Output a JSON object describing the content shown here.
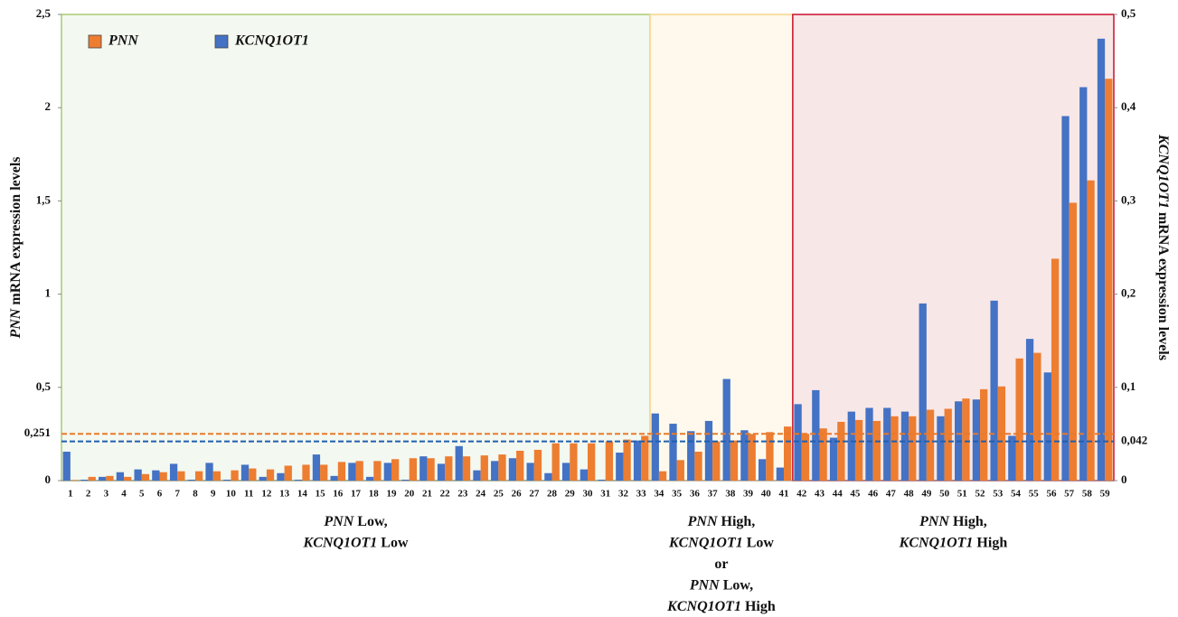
{
  "chart_data": {
    "type": "bar",
    "categories": [
      "1",
      "2",
      "3",
      "4",
      "5",
      "6",
      "7",
      "8",
      "9",
      "10",
      "11",
      "12",
      "13",
      "14",
      "15",
      "16",
      "17",
      "18",
      "19",
      "20",
      "21",
      "22",
      "23",
      "24",
      "25",
      "26",
      "27",
      "28",
      "29",
      "30",
      "31",
      "32",
      "33",
      "34",
      "35",
      "36",
      "37",
      "38",
      "39",
      "40",
      "41",
      "42",
      "43",
      "44",
      "45",
      "46",
      "47",
      "48",
      "49",
      "50",
      "51",
      "52",
      "53",
      "54",
      "55",
      "56",
      "57",
      "58",
      "59"
    ],
    "series": [
      {
        "name": "PNN",
        "color": "#ED7D31",
        "axis": "y",
        "values": [
          0.003,
          0.02,
          0.025,
          0.02,
          0.035,
          0.045,
          0.05,
          0.05,
          0.05,
          0.055,
          0.065,
          0.06,
          0.08,
          0.085,
          0.085,
          0.1,
          0.105,
          0.105,
          0.115,
          0.12,
          0.12,
          0.13,
          0.13,
          0.135,
          0.14,
          0.16,
          0.165,
          0.2,
          0.2,
          0.2,
          0.21,
          0.22,
          0.24,
          0.05,
          0.11,
          0.155,
          0.21,
          0.215,
          0.25,
          0.26,
          0.29,
          0.25,
          0.28,
          0.315,
          0.325,
          0.32,
          0.345,
          0.345,
          0.38,
          0.385,
          0.44,
          0.49,
          0.505,
          0.655,
          0.685,
          1.19,
          1.49,
          1.61,
          2.155
        ]
      },
      {
        "name": "KCNQ1OT1",
        "color": "#4472C4",
        "axis": "y2",
        "values": [
          0.031,
          0.001,
          0.004,
          0.009,
          0.012,
          0.011,
          0.018,
          0.001,
          0.019,
          0.001,
          0.017,
          0.004,
          0.008,
          0.001,
          0.028,
          0.005,
          0.019,
          0.004,
          0.019,
          0.001,
          0.026,
          0.018,
          0.037,
          0.011,
          0.021,
          0.024,
          0.019,
          0.008,
          0.019,
          0.012,
          0.001,
          0.03,
          0.043,
          0.072,
          0.061,
          0.053,
          0.064,
          0.109,
          0.054,
          0.023,
          0.014,
          0.082,
          0.097,
          0.046,
          0.074,
          0.078,
          0.078,
          0.074,
          0.19,
          0.069,
          0.085,
          0.087,
          0.193,
          0.048,
          0.152,
          0.116,
          0.391,
          0.422,
          0.474
        ]
      }
    ],
    "ylim": [
      0,
      2.5
    ],
    "yticks": [
      0,
      {
        "value": 0.5,
        "label": "0,5"
      },
      1,
      {
        "value": 1.5,
        "label": "1,5"
      },
      2,
      {
        "value": 2.5,
        "label": "2,5"
      }
    ],
    "y2lim": [
      0,
      0.5
    ],
    "y2ticks": [
      0,
      {
        "value": 0.1,
        "label": "0,1"
      },
      {
        "value": 0.2,
        "label": "0,2"
      },
      {
        "value": 0.3,
        "label": "0,3"
      },
      {
        "value": 0.4,
        "label": "0,4"
      },
      {
        "value": 0.5,
        "label": "0,5"
      }
    ],
    "y_label": [
      {
        "text": "PNN",
        "italic": true
      },
      {
        "text": " mRNA expression levels",
        "italic": false
      }
    ],
    "y2_label": [
      {
        "text": "KCNQ1OT1",
        "italic": true
      },
      {
        "text": " mRNA expression levels",
        "italic": false
      }
    ],
    "legend": "upper left",
    "thresholds": [
      {
        "value": 0.251,
        "label": "0,251",
        "axis": "y",
        "color": "#E87A2A"
      },
      {
        "value": 0.042,
        "label": "0,042",
        "axis": "y2",
        "color": "#1F5FB0"
      }
    ],
    "regions": [
      {
        "first": "1",
        "last": "33",
        "fill": "#F3F8F0",
        "stroke": "#A8CB72",
        "label": [
          [
            {
              "text": "PNN",
              "italic": true
            },
            {
              "text": " Low,",
              "italic": false
            }
          ],
          [
            {
              "text": "KCNQ1OT1",
              "italic": true
            },
            {
              "text": " Low",
              "italic": false
            }
          ]
        ]
      },
      {
        "first": "34",
        "last": "41",
        "fill": "#FEF9EC",
        "stroke": "#F5D68A",
        "label": [
          [
            {
              "text": "PNN",
              "italic": true
            },
            {
              "text": " High,",
              "italic": false
            }
          ],
          [
            {
              "text": "KCNQ1OT1",
              "italic": true
            },
            {
              "text": " Low",
              "italic": false
            }
          ],
          [
            {
              "text": "or",
              "italic": false
            }
          ],
          [
            {
              "text": "PNN",
              "italic": true
            },
            {
              "text": " Low,",
              "italic": false
            }
          ],
          [
            {
              "text": "KCNQ1OT1",
              "italic": true
            },
            {
              "text": " High",
              "italic": false
            }
          ]
        ]
      },
      {
        "first": "42",
        "last": "59",
        "fill": "#F8E7E7",
        "stroke": "#C8102E",
        "label": [
          [
            {
              "text": "PNN",
              "italic": true
            },
            {
              "text": " High,",
              "italic": false
            }
          ],
          [
            {
              "text": "KCNQ1OT1",
              "italic": true
            },
            {
              "text": " High",
              "italic": false
            }
          ]
        ]
      }
    ]
  }
}
